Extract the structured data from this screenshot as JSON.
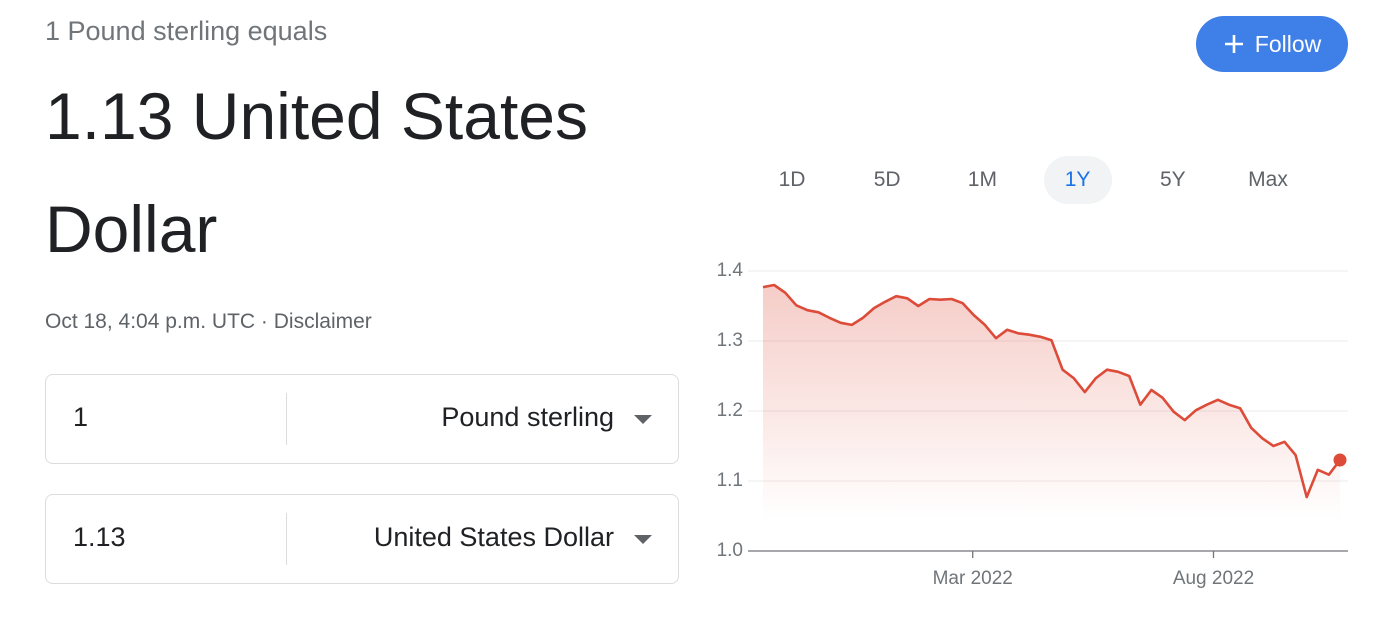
{
  "header": {
    "equals": "1 Pound sterling equals",
    "result": "1.13 United States Dollar",
    "timestamp": "Oct 18, 4:04 p.m. UTC",
    "separator": "·",
    "disclaimer": "Disclaimer",
    "follow": "Follow"
  },
  "converter": {
    "rows": [
      {
        "amount": "1",
        "currency": "Pound sterling"
      },
      {
        "amount": "1.13",
        "currency": "United States Dollar"
      }
    ]
  },
  "ranges": {
    "tabs": [
      "1D",
      "5D",
      "1M",
      "1Y",
      "5Y",
      "Max"
    ],
    "selected": 3
  },
  "chart_data": {
    "type": "line",
    "color": "#dd4b39",
    "values": [
      1.377,
      1.38,
      1.369,
      1.351,
      1.344,
      1.341,
      1.333,
      1.326,
      1.323,
      1.333,
      1.347,
      1.356,
      1.364,
      1.361,
      1.35,
      1.36,
      1.359,
      1.36,
      1.354,
      1.337,
      1.323,
      1.304,
      1.316,
      1.311,
      1.309,
      1.306,
      1.301,
      1.259,
      1.247,
      1.227,
      1.247,
      1.259,
      1.256,
      1.25,
      1.209,
      1.23,
      1.219,
      1.199,
      1.187,
      1.201,
      1.209,
      1.216,
      1.209,
      1.204,
      1.176,
      1.161,
      1.15,
      1.156,
      1.137,
      1.077,
      1.116,
      1.109,
      1.13
    ],
    "xlim": [
      0,
      52
    ],
    "xticks": [
      {
        "value": 18.9,
        "label": "Mar 2022"
      },
      {
        "value": 40.6,
        "label": "Aug 2022"
      }
    ],
    "ylim": [
      1,
      1.4
    ],
    "yticks": [
      {
        "value": 1,
        "label": "1.0"
      },
      1.1,
      1.2,
      1.3,
      1.4
    ],
    "grid": true
  }
}
